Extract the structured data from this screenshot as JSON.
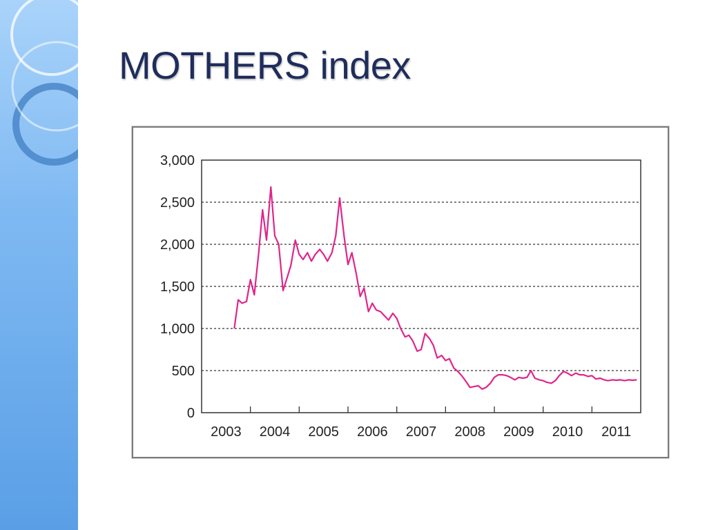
{
  "slide": {
    "title": "MOTHERS index"
  },
  "colors": {
    "title": "#1f2d5c",
    "sidebar": "#7fb9f2",
    "series_line": "#e0248a",
    "grid": "#333333"
  },
  "chart_data": {
    "type": "line",
    "title": "",
    "xlabel": "",
    "ylabel": "",
    "ylim": [
      0,
      3000
    ],
    "xlim": [
      2003,
      2012
    ],
    "y_ticks": [
      0,
      500,
      1000,
      1500,
      2000,
      2500,
      3000
    ],
    "y_tick_labels": [
      "0",
      "500",
      "1,000",
      "1,500",
      "2,000",
      "2,500",
      "3,000"
    ],
    "x_tick_labels": [
      "2003",
      "2004",
      "2005",
      "2006",
      "2007",
      "2008",
      "2009",
      "2010",
      "2011"
    ],
    "grid": "horizontal dotted",
    "series": [
      {
        "x": [
          2003.67,
          2003.75,
          2003.83,
          2003.92,
          2004.0,
          2004.08,
          2004.17,
          2004.25,
          2004.33,
          2004.42,
          2004.5,
          2004.58,
          2004.67,
          2004.75,
          2004.83,
          2004.92,
          2005.0,
          2005.08,
          2005.17,
          2005.25,
          2005.33,
          2005.42,
          2005.5,
          2005.58,
          2005.67,
          2005.75,
          2005.83,
          2005.92,
          2006.0,
          2006.08,
          2006.17,
          2006.25,
          2006.33,
          2006.42,
          2006.5,
          2006.58,
          2006.67,
          2006.75,
          2006.83,
          2006.92,
          2007.0,
          2007.08,
          2007.17,
          2007.25,
          2007.33,
          2007.42,
          2007.5,
          2007.58,
          2007.67,
          2007.75,
          2007.83,
          2007.92,
          2008.0,
          2008.08,
          2008.17,
          2008.25,
          2008.33,
          2008.42,
          2008.5,
          2008.58,
          2008.67,
          2008.75,
          2008.83,
          2008.92,
          2009.0,
          2009.08,
          2009.17,
          2009.25,
          2009.33,
          2009.42,
          2009.5,
          2009.58,
          2009.67,
          2009.75,
          2009.83,
          2009.92,
          2010.0,
          2010.08,
          2010.17,
          2010.25,
          2010.33,
          2010.42,
          2010.5,
          2010.58,
          2010.67,
          2010.75,
          2010.83,
          2010.92,
          2011.0,
          2011.08,
          2011.17,
          2011.25,
          2011.33,
          2011.42,
          2011.5,
          2011.58,
          2011.67,
          2011.75,
          2011.83,
          2011.92
        ],
        "values": [
          1000,
          1340,
          1300,
          1320,
          1580,
          1400,
          1900,
          2410,
          2050,
          2680,
          2100,
          2000,
          1450,
          1600,
          1750,
          2050,
          1880,
          1820,
          1900,
          1800,
          1880,
          1940,
          1880,
          1800,
          1900,
          2100,
          2550,
          2100,
          1760,
          1900,
          1650,
          1380,
          1480,
          1200,
          1300,
          1220,
          1200,
          1150,
          1100,
          1180,
          1120,
          1000,
          900,
          920,
          850,
          730,
          750,
          940,
          880,
          800,
          650,
          680,
          620,
          640,
          530,
          490,
          440,
          370,
          300,
          310,
          320,
          280,
          300,
          350,
          420,
          450,
          450,
          440,
          420,
          390,
          420,
          410,
          420,
          500,
          410,
          390,
          380,
          360,
          350,
          380,
          440,
          490,
          470,
          440,
          470,
          450,
          450,
          430,
          440,
          400,
          410,
          390,
          380,
          390,
          385,
          390,
          380,
          390,
          385,
          390
        ]
      }
    ]
  }
}
